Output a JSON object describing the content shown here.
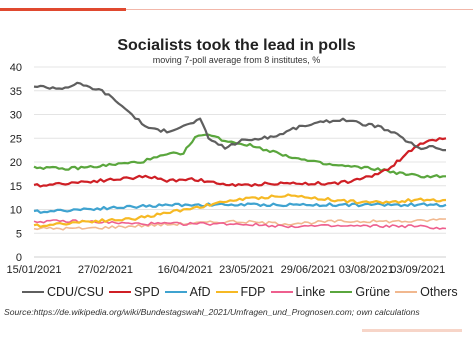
{
  "chart_data": {
    "type": "line",
    "title": "Socialists took the lead in polls",
    "subtitle": "moving 7-poll average from 8 institutes, %",
    "ylim": [
      0,
      40
    ],
    "yticks": [
      0,
      5,
      10,
      15,
      20,
      25,
      30,
      35,
      40
    ],
    "xlim": [
      "2021-01-15",
      "2021-09-20"
    ],
    "xticks": [
      "15/01/2021",
      "27/02/2021",
      "16/04/2021",
      "23/05/2021",
      "29/06/2021",
      "03/08/2021",
      "03/09/2021"
    ],
    "xtick_dates": [
      "2021-01-15",
      "2021-02-27",
      "2021-04-16",
      "2021-05-23",
      "2021-06-29",
      "2021-08-03",
      "2021-09-03"
    ],
    "grid": true,
    "legend_position": "bottom",
    "series": [
      {
        "name": "CDU/CSU",
        "color": "#5f5f5f",
        "x": [
          "2021-01-15",
          "2021-02-01",
          "2021-02-10",
          "2021-02-25",
          "2021-03-05",
          "2021-03-15",
          "2021-03-25",
          "2021-04-05",
          "2021-04-15",
          "2021-04-25",
          "2021-04-30",
          "2021-05-10",
          "2021-05-20",
          "2021-06-01",
          "2021-06-10",
          "2021-06-20",
          "2021-07-01",
          "2021-07-10",
          "2021-07-20",
          "2021-08-01",
          "2021-08-10",
          "2021-08-20",
          "2021-08-25",
          "2021-09-01",
          "2021-09-05",
          "2021-09-10",
          "2021-09-20"
        ],
        "y": [
          36,
          35.5,
          36.5,
          35,
          33,
          30,
          27,
          26.5,
          27.5,
          29,
          25,
          23,
          24.5,
          25,
          25.5,
          27,
          28,
          28.5,
          29,
          28,
          27.5,
          26,
          25,
          23.5,
          22.5,
          23.5,
          22.5
        ]
      },
      {
        "name": "SPD",
        "color": "#cf1f25",
        "x": [
          "2021-01-15",
          "2021-02-01",
          "2021-02-20",
          "2021-03-10",
          "2021-03-25",
          "2021-04-05",
          "2021-04-20",
          "2021-05-05",
          "2021-05-20",
          "2021-06-05",
          "2021-06-20",
          "2021-07-01",
          "2021-07-15",
          "2021-07-25",
          "2021-08-01",
          "2021-08-10",
          "2021-08-18",
          "2021-08-25",
          "2021-09-01",
          "2021-09-08",
          "2021-09-20"
        ],
        "y": [
          15,
          15.5,
          16,
          16.5,
          17,
          16,
          16.5,
          15.5,
          15,
          15.5,
          15.5,
          15.5,
          15.5,
          16,
          16.5,
          17.5,
          19,
          21,
          23,
          24.5,
          25
        ]
      },
      {
        "name": "AfD",
        "color": "#3fa3d0",
        "x": [
          "2021-01-15",
          "2021-02-10",
          "2021-03-10",
          "2021-04-10",
          "2021-05-10",
          "2021-06-10",
          "2021-07-10",
          "2021-08-10",
          "2021-09-01",
          "2021-09-20"
        ],
        "y": [
          9.5,
          10,
          10.5,
          11,
          11,
          11,
          11,
          11,
          11,
          11
        ]
      },
      {
        "name": "FDP",
        "color": "#f6b924",
        "x": [
          "2021-01-15",
          "2021-02-15",
          "2021-03-15",
          "2021-04-01",
          "2021-04-15",
          "2021-05-01",
          "2021-05-15",
          "2021-06-01",
          "2021-06-15",
          "2021-07-01",
          "2021-07-15",
          "2021-08-01",
          "2021-08-15",
          "2021-09-01",
          "2021-09-20"
        ],
        "y": [
          6.5,
          7.5,
          8,
          9,
          10,
          11,
          12,
          12.5,
          13,
          12.5,
          12,
          11.5,
          11.5,
          12,
          12
        ]
      },
      {
        "name": "Linke",
        "color": "#ee5f8e",
        "x": [
          "2021-01-15",
          "2021-02-15",
          "2021-03-15",
          "2021-04-15",
          "2021-05-15",
          "2021-06-15",
          "2021-07-15",
          "2021-08-15",
          "2021-09-01",
          "2021-09-20"
        ],
        "y": [
          7.5,
          7.5,
          7,
          7,
          7,
          6.5,
          6.5,
          6.5,
          6.5,
          6
        ]
      },
      {
        "name": "Grüne",
        "color": "#5aa63d",
        "x": [
          "2021-01-15",
          "2021-02-01",
          "2021-02-20",
          "2021-03-05",
          "2021-03-20",
          "2021-04-05",
          "2021-04-15",
          "2021-04-22",
          "2021-04-28",
          "2021-05-10",
          "2021-05-25",
          "2021-06-10",
          "2021-06-25",
          "2021-07-10",
          "2021-07-25",
          "2021-08-10",
          "2021-08-25",
          "2021-09-05",
          "2021-09-20"
        ],
        "y": [
          19,
          18.5,
          19,
          19.5,
          20,
          21.5,
          22,
          25,
          26,
          24.5,
          23.5,
          22,
          20.5,
          19.5,
          19,
          18.5,
          17.5,
          17,
          17
        ]
      },
      {
        "name": "Others",
        "color": "#f1b88f",
        "x": [
          "2021-01-15",
          "2021-02-15",
          "2021-03-15",
          "2021-04-15",
          "2021-05-15",
          "2021-06-15",
          "2021-07-15",
          "2021-08-15",
          "2021-09-01",
          "2021-09-20"
        ],
        "y": [
          6,
          6,
          6.5,
          7,
          7.5,
          7,
          7.5,
          7.5,
          7.5,
          8
        ]
      }
    ]
  },
  "source_text": "Source:https://de.wikipedia.org/wiki/Bundestagswahl_2021/Umfragen_und_Prognosen.com;  own calculations"
}
